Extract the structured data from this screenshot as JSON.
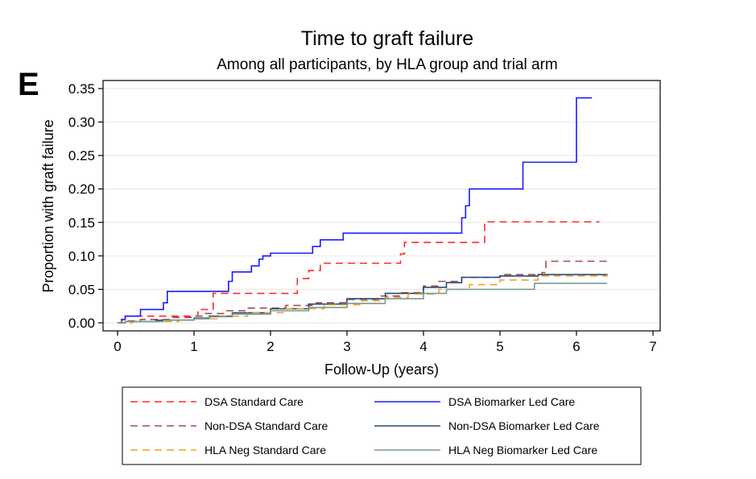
{
  "panel_label": "E",
  "chart_data": {
    "type": "line",
    "step": true,
    "title": "Time to graft failure",
    "subtitle": "Among all participants, by HLA group and trial arm",
    "xlabel": "Follow-Up (years)",
    "ylabel": "Proportion with graft failure",
    "xlim": [
      0,
      7
    ],
    "ylim": [
      0,
      0.35
    ],
    "xticks": [
      0,
      1,
      2,
      3,
      4,
      5,
      6,
      7
    ],
    "xtick_labels": [
      "0",
      "1",
      "2",
      "3",
      "4",
      "5",
      "6",
      "7"
    ],
    "yticks": [
      0,
      0.05,
      0.1,
      0.15,
      0.2,
      0.25,
      0.3,
      0.35
    ],
    "ytick_labels": [
      "0.00",
      "0.05",
      "0.10",
      "0.15",
      "0.20",
      "0.25",
      "0.30",
      "0.35"
    ],
    "grid": "horizontal",
    "legend_position": "bottom",
    "series": [
      {
        "name": "DSA Standard Care",
        "color": "#ff2a2a",
        "dash": "dashed",
        "x": [
          0,
          0.05,
          0.1,
          0.95,
          1.05,
          1.25,
          2.3,
          2.35,
          2.5,
          2.65,
          3.7,
          3.75,
          4.75,
          4.8,
          6.3
        ],
        "y": [
          0,
          0.005,
          0.01,
          0.01,
          0.02,
          0.044,
          0.044,
          0.066,
          0.078,
          0.089,
          0.103,
          0.12,
          0.12,
          0.151,
          0.151
        ]
      },
      {
        "name": "DSA Biomarker Led Care",
        "color": "#1a1aff",
        "dash": "solid",
        "x": [
          0,
          0.05,
          0.1,
          0.3,
          0.55,
          0.6,
          0.65,
          1.4,
          1.45,
          1.5,
          1.75,
          1.85,
          1.9,
          2.0,
          2.55,
          2.65,
          2.95,
          4.4,
          4.5,
          4.55,
          4.6,
          5.3,
          6.0,
          6.2
        ],
        "y": [
          0,
          0.005,
          0.01,
          0.02,
          0.02,
          0.03,
          0.047,
          0.047,
          0.062,
          0.076,
          0.085,
          0.095,
          0.1,
          0.104,
          0.114,
          0.124,
          0.134,
          0.134,
          0.157,
          0.175,
          0.2,
          0.24,
          0.336,
          0.336
        ]
      },
      {
        "name": "Non-DSA Standard Care",
        "color": "#a84a4a",
        "dash": "dashed",
        "x": [
          0,
          0.05,
          0.3,
          0.7,
          1.0,
          1.15,
          1.4,
          1.7,
          2.2,
          2.6,
          3.0,
          3.4,
          3.7,
          4.0,
          4.2,
          4.5,
          5.0,
          5.55,
          5.6,
          6.4
        ],
        "y": [
          0,
          0.003,
          0.005,
          0.008,
          0.01,
          0.014,
          0.018,
          0.022,
          0.026,
          0.03,
          0.035,
          0.04,
          0.045,
          0.055,
          0.062,
          0.068,
          0.072,
          0.075,
          0.092,
          0.092
        ]
      },
      {
        "name": "Non-DSA Biomarker Led Care",
        "color": "#234a78",
        "dash": "solid",
        "x": [
          0,
          0.1,
          0.5,
          1.0,
          1.2,
          1.5,
          2.0,
          2.5,
          3.0,
          3.5,
          4.0,
          4.3,
          4.5,
          5.0,
          5.5,
          6.4
        ],
        "y": [
          0,
          0.002,
          0.004,
          0.007,
          0.01,
          0.015,
          0.021,
          0.028,
          0.036,
          0.044,
          0.053,
          0.06,
          0.068,
          0.07,
          0.072,
          0.073
        ]
      },
      {
        "name": "HLA Neg Standard Care",
        "color": "#f4a020",
        "dash": "dashed",
        "x": [
          0,
          0.2,
          0.8,
          1.0,
          1.3,
          1.7,
          2.2,
          2.7,
          3.2,
          3.5,
          3.8,
          4.2,
          4.6,
          5.0,
          5.5,
          6.4
        ],
        "y": [
          0,
          0.002,
          0.004,
          0.006,
          0.01,
          0.015,
          0.021,
          0.027,
          0.033,
          0.038,
          0.043,
          0.05,
          0.057,
          0.064,
          0.07,
          0.072
        ]
      },
      {
        "name": "HLA Neg Biomarker Led Care",
        "color": "#7a9a90",
        "dash": "solid",
        "x": [
          0,
          0.1,
          0.6,
          1.0,
          1.2,
          1.5,
          2.0,
          2.5,
          3.0,
          3.5,
          4.0,
          4.3,
          5.4,
          5.45,
          6.4
        ],
        "y": [
          0,
          0.002,
          0.004,
          0.006,
          0.009,
          0.013,
          0.018,
          0.023,
          0.029,
          0.036,
          0.044,
          0.05,
          0.05,
          0.059,
          0.059
        ]
      }
    ]
  }
}
